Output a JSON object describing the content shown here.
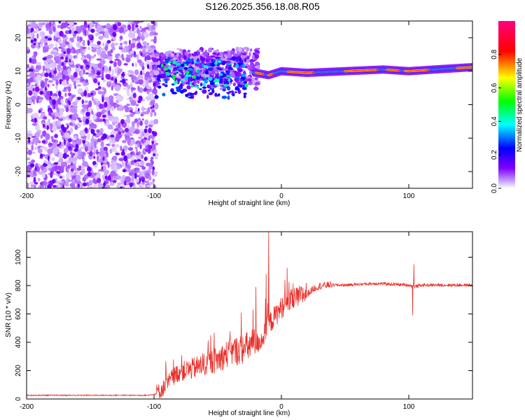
{
  "figure": {
    "title": "S126.2025.356.18.08.R05"
  },
  "chart_data": [
    {
      "type": "heatmap",
      "name": "spectrogram",
      "xlabel": "Height of straight line (km)",
      "ylabel": "Frequency (Hz)",
      "xlim": [
        -200,
        150
      ],
      "ylim": [
        -25,
        25
      ],
      "xticks": [
        -200,
        -100,
        0,
        100
      ],
      "yticks": [
        -20,
        -10,
        0,
        10,
        20
      ],
      "colorbar": {
        "label": "Normalized spectral amplitude",
        "range": [
          0,
          1
        ],
        "ticks": [
          0,
          0.2,
          0.4,
          0.6,
          0.8
        ],
        "colors": [
          "#ffffff",
          "#8000ff",
          "#0000ff",
          "#00ffff",
          "#00ff00",
          "#ffff00",
          "#ff0000",
          "#ff0080"
        ]
      },
      "description_points": {
        "noise_region_x": [
          -200,
          -100
        ],
        "turbulent_region_x": [
          -100,
          -20
        ],
        "carrier_region_x": [
          -20,
          150
        ],
        "carrier_freq_track": [
          [
            -20,
            9.5
          ],
          [
            -10,
            8.8
          ],
          [
            0,
            10.0
          ],
          [
            20,
            9.5
          ],
          [
            50,
            10.0
          ],
          [
            80,
            10.5
          ],
          [
            100,
            10.0
          ],
          [
            120,
            10.5
          ],
          [
            150,
            11.2
          ]
        ]
      }
    },
    {
      "type": "line",
      "name": "snr",
      "xlabel": "Height of straight line (km)",
      "ylabel": "SNR (10 * v/v)",
      "xlim": [
        -200,
        150
      ],
      "ylim": [
        0,
        1180
      ],
      "xticks": [
        -200,
        -100,
        0,
        100
      ],
      "yticks": [
        0,
        200,
        400,
        600,
        800,
        1000
      ],
      "color": "#e8302a",
      "series": [
        {
          "name": "SNR",
          "x": [
            -200,
            -150,
            -105,
            -95,
            -90,
            -85,
            -80,
            -70,
            -60,
            -50,
            -40,
            -30,
            -20,
            -15,
            -10,
            -5,
            0,
            5,
            10,
            15,
            20,
            25,
            30,
            35,
            40,
            50,
            60,
            70,
            80,
            90,
            100,
            105,
            110,
            120,
            130,
            140,
            150
          ],
          "y": [
            25,
            25,
            25,
            40,
            80,
            140,
            170,
            190,
            220,
            250,
            300,
            320,
            360,
            400,
            500,
            560,
            620,
            660,
            680,
            700,
            730,
            770,
            790,
            795,
            800,
            800,
            805,
            810,
            810,
            805,
            800,
            790,
            800,
            800,
            800,
            800,
            800
          ]
        }
      ],
      "spikes": [
        {
          "x": -10,
          "y": 1180
        },
        {
          "x": -12,
          "y": 880
        },
        {
          "x": -20,
          "y": 790
        },
        {
          "x": 104,
          "y": 950
        },
        {
          "x": 103,
          "y": 590
        }
      ]
    }
  ]
}
